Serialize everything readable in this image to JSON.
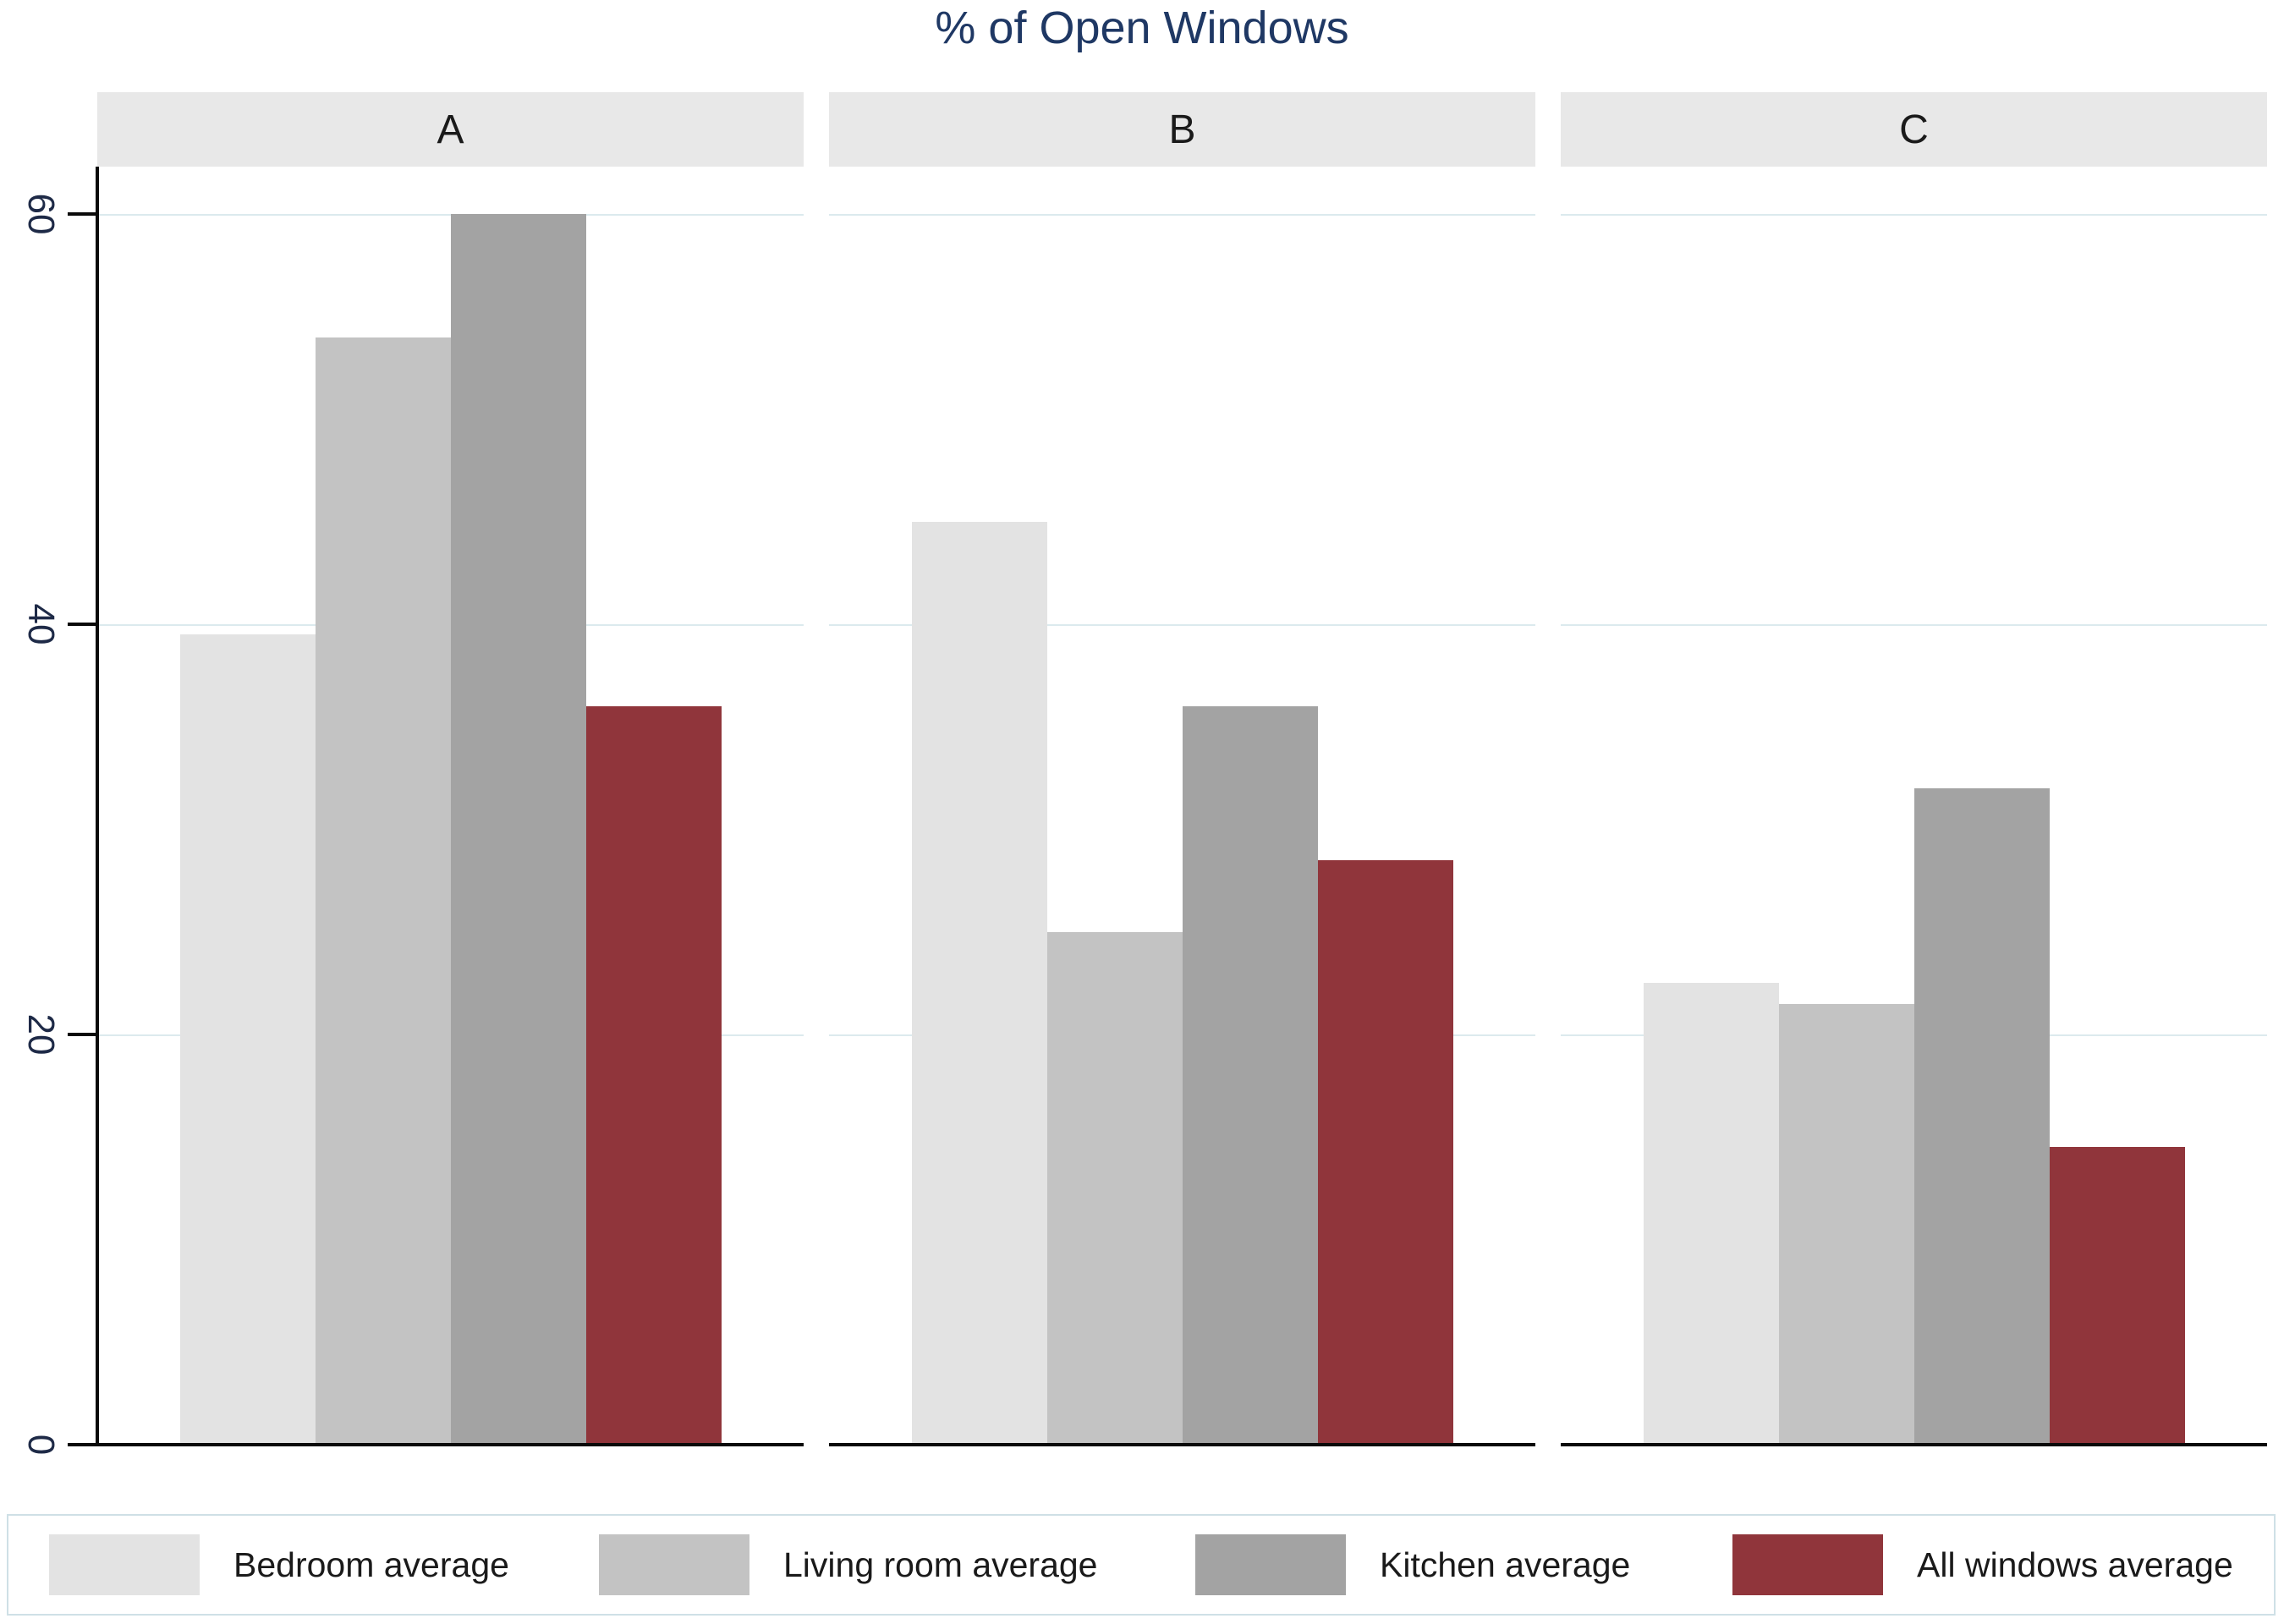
{
  "chart_data": {
    "type": "bar",
    "title": "% of Open Windows",
    "title_color": "#1f3864",
    "panels": [
      "A",
      "B",
      "C"
    ],
    "categories_note": "three panels A, B, C; four bars per panel",
    "series": [
      {
        "name": "Bedroom average",
        "color": "#e3e3e3",
        "values": [
          39.5,
          45.0,
          22.5
        ]
      },
      {
        "name": "Living room average",
        "color": "#c3c3c3",
        "values": [
          54.0,
          25.0,
          21.5
        ]
      },
      {
        "name": "Kitchen average",
        "color": "#a3a3a3",
        "values": [
          60.0,
          36.0,
          32.0
        ]
      },
      {
        "name": "All windows average",
        "color": "#90353b",
        "values": [
          36.0,
          28.5,
          14.5
        ]
      }
    ],
    "ylabel": "",
    "xlabel": "",
    "y_ticks": [
      0,
      20,
      40,
      60
    ],
    "ylim": [
      0,
      62.2
    ],
    "grid": "horizontal light lines at 20, 40, 60",
    "grid_color": "#dceaee",
    "legend_position": "bottom",
    "legend_labels": [
      "Bedroom average",
      "Living room average",
      "Kitchen average",
      "All windows average"
    ]
  }
}
